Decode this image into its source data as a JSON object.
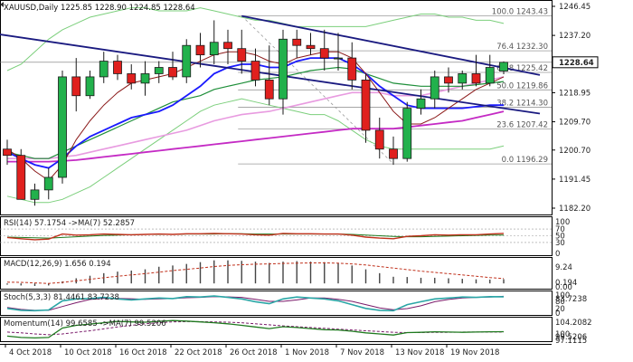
{
  "chart_data": [
    {
      "type": "candlestick",
      "header": {
        "symbol": "XAUUSD,Daily",
        "ohlc": "1225.85 1228.90 1224.85 1228.64"
      },
      "current_price": 1228.64,
      "yaxis_ticks": [
        "1246.45",
        "1237.20",
        "1228.64",
        "1218.95",
        "1209.70",
        "1200.70",
        "1191.45",
        "1182.20"
      ],
      "ylim": [
        1182.2,
        1246.45
      ],
      "xaxis_ticks": [
        "4 Oct 2018",
        "10 Oct 2018",
        "16 Oct 2018",
        "22 Oct 2018",
        "26 Oct 2018",
        "1 Nov 2018",
        "7 Nov 2018",
        "13 Nov 2018",
        "19 Nov 2018"
      ],
      "candles": [
        [
          1201,
          1204,
          1196,
          1199
        ],
        [
          1199,
          1201,
          1185,
          1185
        ],
        [
          1185,
          1190,
          1183,
          1188
        ],
        [
          1188,
          1195,
          1185,
          1192
        ],
        [
          1192,
          1226,
          1190,
          1224
        ],
        [
          1224,
          1230,
          1213,
          1218
        ],
        [
          1218,
          1226,
          1217,
          1224
        ],
        [
          1224,
          1232,
          1222,
          1229
        ],
        [
          1229,
          1231,
          1223,
          1225
        ],
        [
          1225,
          1228,
          1220,
          1222
        ],
        [
          1222,
          1229,
          1218,
          1225
        ],
        [
          1225,
          1229,
          1222,
          1227
        ],
        [
          1227,
          1232,
          1223,
          1224
        ],
        [
          1224,
          1236,
          1222,
          1234
        ],
        [
          1234,
          1238,
          1227,
          1231
        ],
        [
          1231,
          1242,
          1228,
          1235
        ],
        [
          1235,
          1239,
          1228,
          1233
        ],
        [
          1233,
          1239,
          1225,
          1229
        ],
        [
          1229,
          1233,
          1221,
          1223
        ],
        [
          1223,
          1234,
          1215,
          1217
        ],
        [
          1217,
          1239,
          1212,
          1236
        ],
        [
          1236,
          1239,
          1230,
          1234
        ],
        [
          1234,
          1238,
          1231,
          1233
        ],
        [
          1233,
          1239,
          1226,
          1230
        ],
        [
          1230,
          1238,
          1226,
          1230
        ],
        [
          1230,
          1235,
          1220,
          1223
        ],
        [
          1223,
          1225,
          1203,
          1207
        ],
        [
          1207,
          1211,
          1198,
          1201
        ],
        [
          1201,
          1205,
          1196,
          1198
        ],
        [
          1198,
          1216,
          1197,
          1214
        ],
        [
          1214,
          1220,
          1212,
          1217
        ],
        [
          1217,
          1226,
          1214,
          1224
        ],
        [
          1224,
          1227,
          1219,
          1222
        ],
        [
          1222,
          1226,
          1220,
          1225
        ],
        [
          1225,
          1231,
          1221,
          1222
        ],
        [
          1222,
          1231,
          1221,
          1227
        ],
        [
          1225.85,
          1228.9,
          1224.85,
          1228.64
        ]
      ],
      "fibonacci": [
        {
          "level": "100.0",
          "price": "1243.43"
        },
        {
          "level": "76.4",
          "price": "1232.30"
        },
        {
          "level": "61.8",
          "price": "1225.42"
        },
        {
          "level": "50.0",
          "price": "1219.86"
        },
        {
          "level": "38.2",
          "price": "1214.30"
        },
        {
          "level": "23.6",
          "price": "1207.42"
        },
        {
          "level": "0.0",
          "price": "1196.29"
        }
      ]
    },
    {
      "type": "line",
      "label": "RSI(14) 57.1754 ->MA(7) 52.2857",
      "yaxis_ticks": [
        "100",
        "70",
        "50",
        "30",
        "0"
      ],
      "ylim": [
        0,
        100
      ],
      "levels": [
        70,
        50,
        30
      ]
    },
    {
      "type": "bar",
      "label": "MACD(12,26,9) 1.656 0.194",
      "yaxis_ticks": [
        "9.24",
        "0.194",
        "0.00"
      ],
      "ylim": [
        -1,
        9.24
      ]
    },
    {
      "type": "line",
      "label": "Stoch(5,3,3) 81.4461 83.7238",
      "yaxis_ticks": [
        "100",
        "83.7238",
        "80",
        "20",
        "0"
      ],
      "ylim": [
        0,
        100
      ]
    },
    {
      "type": "line",
      "label": "Momentum(14) 99.6585 ->MA(7) 99.5206",
      "yaxis_ticks": [
        "104.2082",
        "100",
        "99.5206",
        "97.1115"
      ],
      "ylim": [
        97.1115,
        104.2082
      ]
    }
  ],
  "colors": {
    "up_candle": "#22b14c",
    "down_candle": "#e0201e",
    "candle_outline": "#1a1a1a",
    "navy": "#1a1a80",
    "blue_ma": "#1a1aff",
    "green_ma": "#1f8f3a",
    "magenta_ma": "#c42ac4",
    "pink_ma": "#e89be0",
    "maroon_ma": "#8b1a1a",
    "bollinger": "#7ccf7c",
    "fib": "#9a9a9a",
    "rsi_line": "#c0311c",
    "rsi_ma": "#1f7a1f",
    "macd_bar": "#444444",
    "macd_signal": "#c0311c",
    "stoch_main": "#2aa6a6",
    "stoch_signal": "#7a1a6a",
    "momentum": "#1f7a1f",
    "momentum_ma": "#7a1a6a"
  }
}
